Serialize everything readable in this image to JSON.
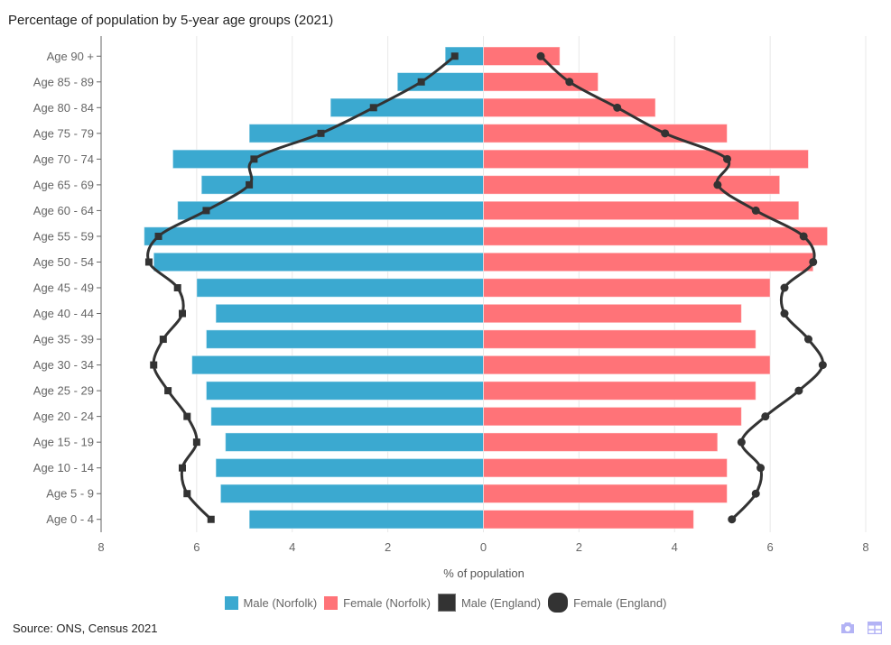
{
  "title": "Percentage of population by 5-year age groups (2021)",
  "source": "Source: ONS, Census 2021",
  "toolbar": {
    "icons": [
      "camera-icon",
      "table-icon"
    ]
  },
  "colors": {
    "male_norfolk": "#3ba9d0",
    "female_norfolk": "#ff7378",
    "england": "#333333",
    "grid": "#e8e8e8",
    "axis": "#666666"
  },
  "chart_data": {
    "type": "bar",
    "orientation": "horizontal",
    "title": "Percentage of population by 5-year age groups (2021)",
    "xlabel": "% of population",
    "ylabel": "",
    "xlim": [
      -8,
      8
    ],
    "xticks": [
      -8,
      -6,
      -4,
      -2,
      0,
      2,
      4,
      6,
      8
    ],
    "xtick_labels": [
      "8",
      "6",
      "4",
      "2",
      "0",
      "2",
      "4",
      "6",
      "8"
    ],
    "grid": true,
    "legend_position": "bottom-center",
    "categories": [
      "Age 0 - 4",
      "Age 5 - 9",
      "Age 10 - 14",
      "Age 15 - 19",
      "Age 20 - 24",
      "Age 25 - 29",
      "Age 30 - 34",
      "Age 35 - 39",
      "Age 40 - 44",
      "Age 45 - 49",
      "Age 50 - 54",
      "Age 55 - 59",
      "Age 60 - 64",
      "Age 65 - 69",
      "Age 70 - 74",
      "Age 75 - 79",
      "Age 80 - 84",
      "Age 85 - 89",
      "Age 90 +"
    ],
    "series": [
      {
        "name": "Male (Norfolk)",
        "type": "bar",
        "side": "left",
        "values": [
          4.9,
          5.5,
          5.6,
          5.4,
          5.7,
          5.8,
          6.1,
          5.8,
          5.6,
          6.0,
          6.9,
          7.1,
          6.4,
          5.9,
          6.5,
          4.9,
          3.2,
          1.8,
          0.8
        ]
      },
      {
        "name": "Female (Norfolk)",
        "type": "bar",
        "side": "right",
        "values": [
          4.4,
          5.1,
          5.1,
          4.9,
          5.4,
          5.7,
          6.0,
          5.7,
          5.4,
          6.0,
          6.9,
          7.2,
          6.6,
          6.2,
          6.8,
          5.1,
          3.6,
          2.4,
          1.6
        ]
      },
      {
        "name": "Male (England)",
        "type": "line",
        "marker": "square",
        "side": "left",
        "values": [
          5.7,
          6.2,
          6.3,
          6.0,
          6.2,
          6.6,
          6.9,
          6.7,
          6.3,
          6.4,
          7.0,
          6.8,
          5.8,
          4.9,
          4.8,
          3.4,
          2.3,
          1.3,
          0.6
        ]
      },
      {
        "name": "Female (England)",
        "type": "line",
        "marker": "circle",
        "side": "right",
        "values": [
          5.2,
          5.7,
          5.8,
          5.4,
          5.9,
          6.6,
          7.1,
          6.8,
          6.3,
          6.3,
          6.9,
          6.7,
          5.7,
          4.9,
          5.1,
          3.8,
          2.8,
          1.8,
          1.2
        ]
      }
    ]
  }
}
